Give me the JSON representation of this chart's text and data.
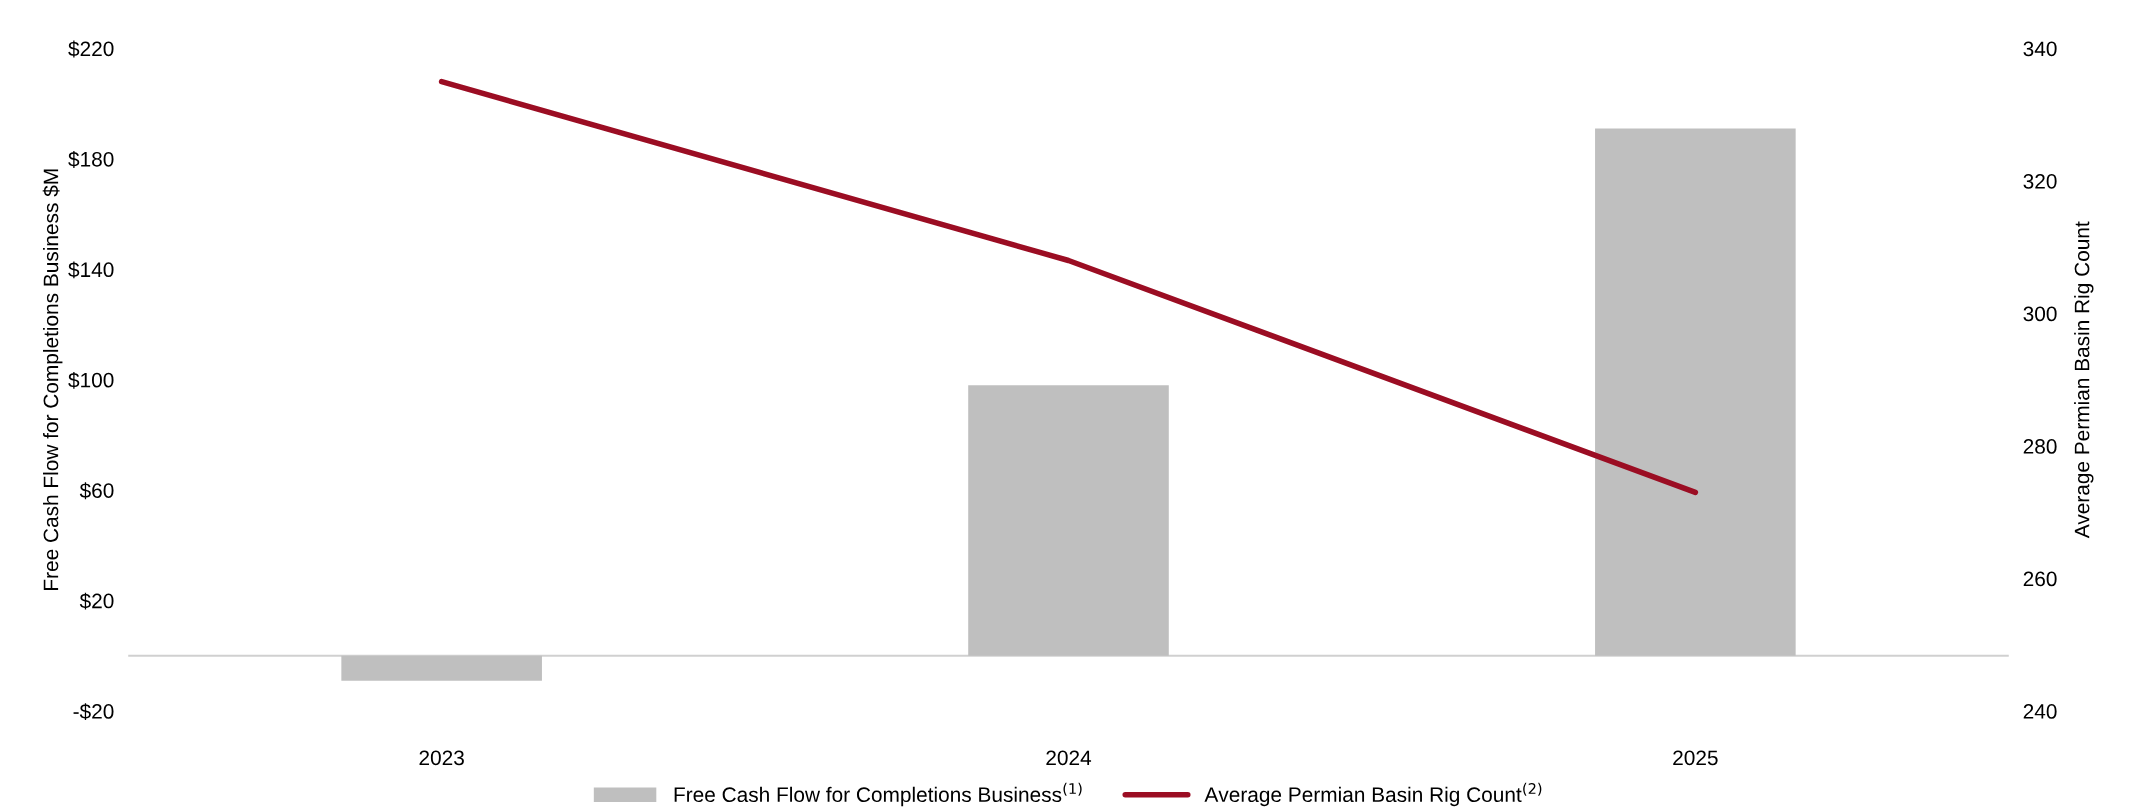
{
  "chart_data": {
    "type": "bar",
    "categories": [
      "2023",
      "2024",
      "2025"
    ],
    "series": [
      {
        "name": "Free Cash Flow for Completions Business$^{(1)}$",
        "color": "#bfbfbf",
        "values": [
          -9,
          98,
          191
        ]
      },
      {
        "name": "Average Permian Basin Rig Count$^{(2)}$",
        "type": "line",
        "axis": "y2",
        "color": "#9b0d23",
        "values": [
          335,
          308,
          273
        ]
      }
    ],
    "ylabel": "Free Cash Flow for Completions Business $M",
    "y2label": "Average Permian Basin Rig Count",
    "ylim": [
      -20,
      220
    ],
    "yticks": [
      {
        "value": -20,
        "label": "-$20"
      },
      {
        "value": 20,
        "label": "$20"
      },
      {
        "value": 60,
        "label": "$60"
      },
      {
        "value": 100,
        "label": "$100"
      },
      {
        "value": 140,
        "label": "$140"
      },
      {
        "value": 180,
        "label": "$180"
      },
      {
        "value": 220,
        "label": "$220"
      }
    ],
    "y2lim": [
      240,
      340
    ],
    "y2ticks": [
      240,
      260,
      280,
      300,
      320,
      340
    ],
    "legend": "bottom",
    "grid": false
  }
}
